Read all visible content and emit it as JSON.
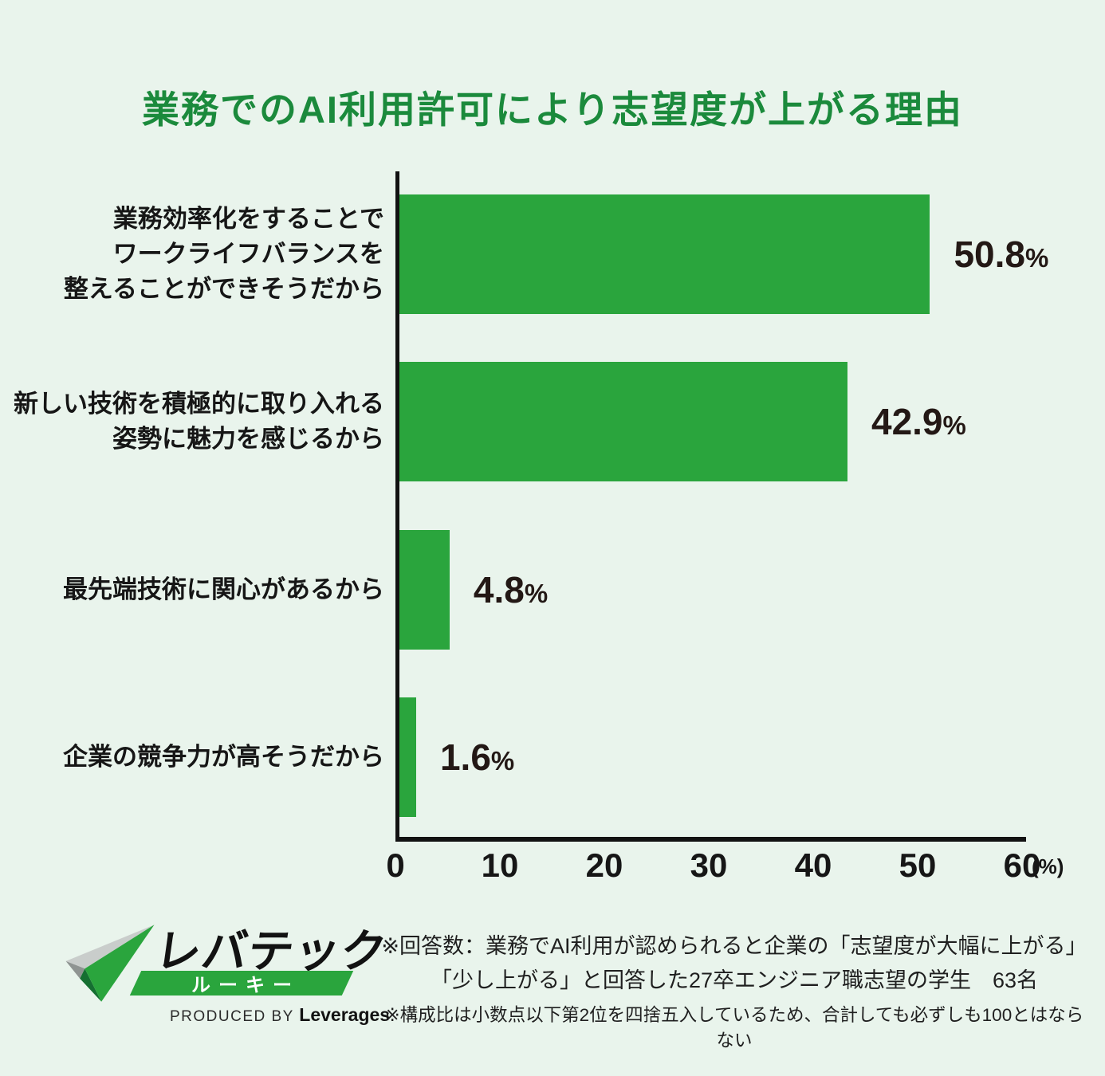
{
  "title": "業務でのAI利用許可により志望度が上がる理由",
  "chart_data": {
    "type": "bar",
    "orientation": "horizontal",
    "title": "業務でのAI利用許可により志望度が上がる理由",
    "categories": [
      [
        "業務効率化をすることで",
        "ワークライフバランスを",
        "整えることができそうだから"
      ],
      [
        "新しい技術を積極的に取り入れる",
        "姿勢に魅力を感じるから"
      ],
      [
        "最先端技術に関心があるから"
      ],
      [
        "企業の競争力が高そうだから"
      ]
    ],
    "values": [
      50.8,
      42.9,
      4.8,
      1.6
    ],
    "value_labels": [
      "50.8",
      "42.9",
      "4.8",
      "1.6"
    ],
    "unit": "%",
    "xlim": [
      0,
      60
    ],
    "x_ticks": [
      0,
      10,
      20,
      30,
      40,
      50,
      60
    ],
    "x_axis_unit": "(%)",
    "grid": false,
    "legend": false,
    "bar_color": "#2aa53d"
  },
  "footer": {
    "logo": {
      "brand": "レバテック",
      "badge": "ルーキー",
      "produced_by": "PRODUCED BY ",
      "company": "Leverages"
    },
    "notes": {
      "line1": "※回答数：業務でAI利用が認められると企業の「志望度が大幅に上がる」",
      "line2": "「少し上がる」と回答した27卒エンジニア職志望の学生　63名",
      "line3": "※構成比は小数点以下第2位を四捨五入しているため、合計しても必ずしも100とはならない"
    }
  },
  "colors": {
    "background": "#e9f4ec",
    "bar": "#2aa53d",
    "title": "#1b8a3c",
    "text": "#1f1f1f",
    "axis": "#121212",
    "badge_band": "#2aa53d",
    "badge_text": "#ffffff",
    "logo_light_gray": "#c9cdcb",
    "logo_dark_gray": "#8f9492",
    "logo_dark_green": "#156f31"
  }
}
